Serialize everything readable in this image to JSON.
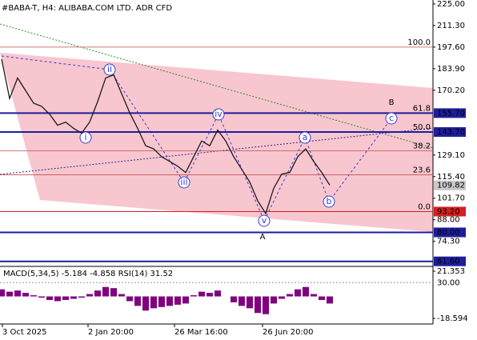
{
  "chart_data": {
    "type": "line",
    "title": "#BABA-T, H4:  ALIBABA.COM LTD. ADR CFD",
    "values": [
      190,
      165,
      178,
      170,
      162,
      160,
      155,
      148,
      150,
      146,
      143,
      150,
      163,
      178,
      180,
      168,
      156,
      146,
      135,
      133,
      128,
      125,
      122,
      118,
      128,
      138,
      135,
      145,
      138,
      128,
      120,
      112,
      100,
      92,
      108,
      117,
      118,
      128,
      133,
      125,
      118,
      110
    ],
    "color": "#1a1a1a",
    "ylim": [
      58.4,
      227.5
    ],
    "yticks": [
      {
        "value": 225,
        "label": "225.00"
      },
      {
        "value": 211.3,
        "label": "211.30"
      },
      {
        "value": 197.6,
        "label": "197.60"
      },
      {
        "value": 183.9,
        "label": "183.90"
      },
      {
        "value": 170.2,
        "label": "170.20"
      },
      {
        "value": 129.1,
        "label": "129.10"
      },
      {
        "value": 115.4,
        "label": "115.40"
      },
      {
        "value": 101.7,
        "label": "101.70"
      },
      {
        "value": 88,
        "label": "88.00"
      },
      {
        "value": 74.3,
        "label": "74.30"
      }
    ],
    "levels": [
      {
        "value": 155.7,
        "label": "155.70",
        "color": "#1e1e9c"
      },
      {
        "value": 143.7,
        "label": "143.70",
        "color": "#1e1e9c"
      },
      {
        "value": 109.82,
        "label": "109.82",
        "color": "#c8c8c8"
      },
      {
        "value": 93.2,
        "label": "93.20",
        "color": "#d42020"
      },
      {
        "value": 80,
        "label": "80.00",
        "color": "#1e1e9c"
      },
      {
        "value": 61.6,
        "label": "61.60",
        "color": "#1e1e9c"
      }
    ],
    "fib_levels": [
      {
        "value": 197.6,
        "label": "100.0"
      },
      {
        "value": 155.7,
        "label": "61.8"
      },
      {
        "value": 143.7,
        "label": "50.0"
      },
      {
        "value": 131.7,
        "label": "38.2"
      },
      {
        "value": 116.5,
        "label": "23.6"
      },
      {
        "value": 93.2,
        "label": "0.0"
      }
    ],
    "wave_labels": [
      "i",
      "ii",
      "iii",
      "iv",
      "v",
      "a",
      "b",
      "c"
    ],
    "corrective_labels": [
      "A",
      "B"
    ],
    "x_labels": [
      "3 Oct 2025",
      "2 Jan 20:00",
      "26 Mar 16:00",
      "26 Jun 20:00"
    ],
    "indicator": {
      "title": "MACD(5,34,5) -5.184 -4.858 RSI(14) 31.52",
      "values": [
        6,
        4,
        5,
        3,
        1,
        -1,
        -3,
        -4,
        -3,
        -2,
        -1,
        2,
        5,
        8,
        7,
        2,
        -4,
        -8,
        -12,
        -10,
        -9,
        -8,
        -7,
        -6,
        1,
        4,
        3,
        5,
        0,
        -5,
        -8,
        -10,
        -14,
        -15,
        -6,
        -2,
        2,
        6,
        8,
        2,
        -3,
        -6
      ],
      "color": "#800080",
      "ylim": [
        -18.594,
        21.353
      ],
      "yticks": [
        {
          "value": 21.353,
          "label": "21.353"
        },
        {
          "value": -18.594,
          "label": "-18.594"
        }
      ],
      "rsi_ticks": [
        {
          "value": 30,
          "label": "30.00"
        }
      ]
    }
  }
}
